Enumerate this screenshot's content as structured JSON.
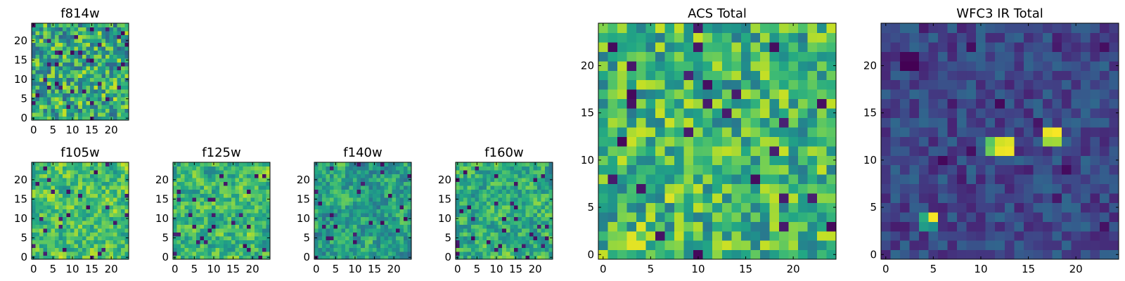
{
  "chart_data": [
    {
      "type": "heatmap",
      "id": "f814w",
      "title": "f814w",
      "colormap": "viridis",
      "nx": 25,
      "ny": 25,
      "xlim": [
        -0.5,
        24.5
      ],
      "ylim": [
        -0.5,
        24.5
      ],
      "xticks": [
        0,
        5,
        10,
        15,
        20
      ],
      "yticks": [
        0,
        5,
        10,
        15,
        20
      ],
      "xtick_labels": [
        "0",
        "5",
        "10",
        "15",
        "20"
      ],
      "ytick_labels": [
        "0",
        "5",
        "10",
        "15",
        "20"
      ],
      "value_range": [
        0,
        1
      ],
      "seed": 11,
      "base": 0.62,
      "spread": 0.3,
      "smooth": 0,
      "dark_frac": 0.06,
      "hotspots": []
    },
    {
      "type": "heatmap",
      "id": "f105w",
      "title": "f105w",
      "colormap": "viridis",
      "nx": 25,
      "ny": 25,
      "xlim": [
        -0.5,
        24.5
      ],
      "ylim": [
        -0.5,
        24.5
      ],
      "xticks": [
        0,
        5,
        10,
        15,
        20
      ],
      "yticks": [
        0,
        5,
        10,
        15,
        20
      ],
      "xtick_labels": [
        "0",
        "5",
        "10",
        "15",
        "20"
      ],
      "ytick_labels": [
        "0",
        "5",
        "10",
        "15",
        "20"
      ],
      "value_range": [
        0,
        1
      ],
      "seed": 23,
      "base": 0.7,
      "spread": 0.3,
      "smooth": 1,
      "dark_frac": 0.04,
      "hotspots": []
    },
    {
      "type": "heatmap",
      "id": "f125w",
      "title": "f125w",
      "colormap": "viridis",
      "nx": 25,
      "ny": 25,
      "xlim": [
        -0.5,
        24.5
      ],
      "ylim": [
        -0.5,
        24.5
      ],
      "xticks": [
        0,
        5,
        10,
        15,
        20
      ],
      "yticks": [
        0,
        5,
        10,
        15,
        20
      ],
      "xtick_labels": [
        "0",
        "5",
        "10",
        "15",
        "20"
      ],
      "ytick_labels": [
        "0",
        "5",
        "10",
        "15",
        "20"
      ],
      "value_range": [
        0,
        1
      ],
      "seed": 37,
      "base": 0.66,
      "spread": 0.3,
      "smooth": 1,
      "dark_frac": 0.04,
      "hotspots": []
    },
    {
      "type": "heatmap",
      "id": "f140w",
      "title": "f140w",
      "colormap": "viridis",
      "nx": 25,
      "ny": 25,
      "xlim": [
        -0.5,
        24.5
      ],
      "ylim": [
        -0.5,
        24.5
      ],
      "xticks": [
        0,
        5,
        10,
        15,
        20
      ],
      "yticks": [
        0,
        5,
        10,
        15,
        20
      ],
      "xtick_labels": [
        "0",
        "5",
        "10",
        "15",
        "20"
      ],
      "ytick_labels": [
        "0",
        "5",
        "10",
        "15",
        "20"
      ],
      "value_range": [
        0,
        1
      ],
      "seed": 41,
      "base": 0.56,
      "spread": 0.3,
      "smooth": 1,
      "dark_frac": 0.05,
      "hotspots": []
    },
    {
      "type": "heatmap",
      "id": "f160w",
      "title": "f160w",
      "colormap": "viridis",
      "nx": 25,
      "ny": 25,
      "xlim": [
        -0.5,
        24.5
      ],
      "ylim": [
        -0.5,
        24.5
      ],
      "xticks": [
        0,
        5,
        10,
        15,
        20
      ],
      "yticks": [
        0,
        5,
        10,
        15,
        20
      ],
      "xtick_labels": [
        "0",
        "5",
        "10",
        "15",
        "20"
      ],
      "ytick_labels": [
        "0",
        "5",
        "10",
        "15",
        "20"
      ],
      "value_range": [
        0,
        1
      ],
      "seed": 53,
      "base": 0.63,
      "spread": 0.3,
      "smooth": 1,
      "dark_frac": 0.04,
      "hotspots": []
    },
    {
      "type": "heatmap",
      "id": "acs-total",
      "title": "ACS Total",
      "colormap": "viridis",
      "nx": 25,
      "ny": 25,
      "xlim": [
        -0.5,
        24.5
      ],
      "ylim": [
        -0.5,
        24.5
      ],
      "xticks": [
        0,
        5,
        10,
        15,
        20
      ],
      "yticks": [
        0,
        5,
        10,
        15,
        20
      ],
      "xtick_labels": [
        "0",
        "5",
        "10",
        "15",
        "20"
      ],
      "ytick_labels": [
        "0",
        "5",
        "10",
        "15",
        "20"
      ],
      "value_range": [
        0,
        1
      ],
      "seed": 67,
      "base": 0.66,
      "spread": 0.26,
      "smooth": 0,
      "dark_frac": 0.035,
      "hotspots": [
        {
          "x": 3,
          "y": 1,
          "value": 0.96
        },
        {
          "x": 4,
          "y": 1,
          "value": 0.96
        },
        {
          "x": 3,
          "y": 2,
          "value": 0.95
        },
        {
          "x": 4,
          "y": 3,
          "value": 0.95
        },
        {
          "x": 7,
          "y": 6,
          "value": 0.95
        }
      ]
    },
    {
      "type": "heatmap",
      "id": "wfc3-ir-total",
      "title": "WFC3 IR Total",
      "colormap": "viridis",
      "nx": 25,
      "ny": 25,
      "xlim": [
        -0.5,
        24.5
      ],
      "ylim": [
        -0.5,
        24.5
      ],
      "xticks": [
        0,
        5,
        10,
        15,
        20
      ],
      "yticks": [
        0,
        5,
        10,
        15,
        20
      ],
      "xtick_labels": [
        "0",
        "5",
        "10",
        "15",
        "20"
      ],
      "ytick_labels": [
        "0",
        "5",
        "10",
        "15",
        "20"
      ],
      "value_range": [
        0,
        1
      ],
      "seed": 79,
      "base": 0.22,
      "spread": 0.12,
      "smooth": 0,
      "dark_frac": 0.03,
      "hotspots": [
        {
          "x": 12,
          "y": 11,
          "value": 0.97
        },
        {
          "x": 13,
          "y": 11,
          "value": 0.98
        },
        {
          "x": 12,
          "y": 12,
          "value": 0.93
        },
        {
          "x": 13,
          "y": 12,
          "value": 0.95
        },
        {
          "x": 11,
          "y": 11,
          "value": 0.78
        },
        {
          "x": 11,
          "y": 12,
          "value": 0.74
        },
        {
          "x": 17,
          "y": 12,
          "value": 0.85
        },
        {
          "x": 18,
          "y": 12,
          "value": 0.86
        },
        {
          "x": 17,
          "y": 13,
          "value": 0.97
        },
        {
          "x": 18,
          "y": 13,
          "value": 0.99
        },
        {
          "x": 5,
          "y": 4,
          "value": 0.99
        },
        {
          "x": 4,
          "y": 4,
          "value": 0.62
        },
        {
          "x": 4,
          "y": 3,
          "value": 0.55
        },
        {
          "x": 5,
          "y": 3,
          "value": 0.5
        },
        {
          "x": 2,
          "y": 20,
          "value": 0.0
        },
        {
          "x": 3,
          "y": 20,
          "value": 0.0
        },
        {
          "x": 2,
          "y": 21,
          "value": 0.02
        },
        {
          "x": 3,
          "y": 21,
          "value": 0.02
        }
      ]
    }
  ]
}
